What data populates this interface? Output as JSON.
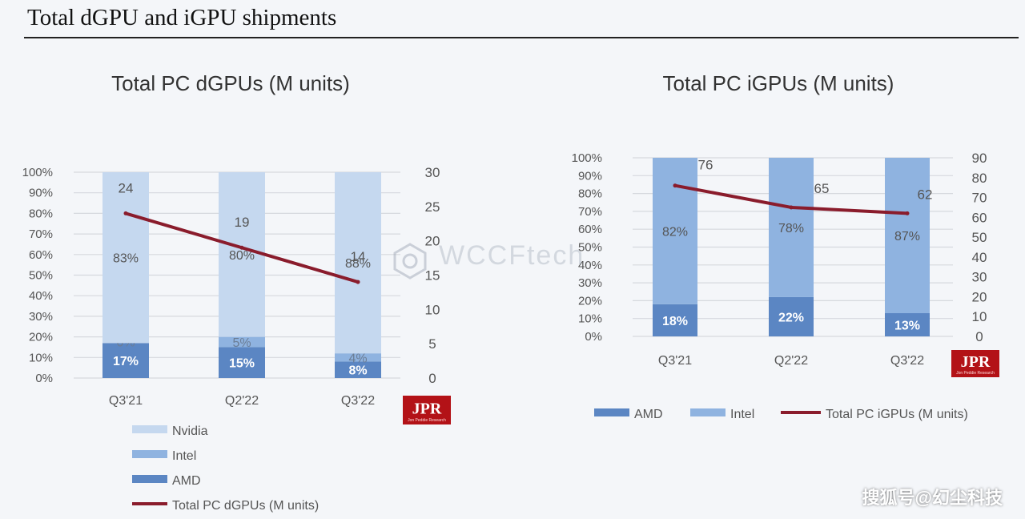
{
  "page": {
    "title": "Total dGPU and iGPU shipments",
    "watermark": "WCCFtech",
    "credit": "搜狐号@幻尘科技",
    "logo_text": "JPR",
    "logo_subtext": "Jon Peddie Research"
  },
  "colors": {
    "amd": "#5b86c3",
    "intel": "#8fb3e0",
    "nvidia": "#c5d8ef",
    "line": "#8a1c2c"
  },
  "chart_data": [
    {
      "type": "bar",
      "stacked": true,
      "title": "Total PC dGPUs (M units)",
      "categories": [
        "Q3'21",
        "Q2'22",
        "Q3'22"
      ],
      "y_left_ticks": [
        "0%",
        "10%",
        "20%",
        "30%",
        "40%",
        "50%",
        "60%",
        "70%",
        "80%",
        "90%",
        "100%"
      ],
      "y_right_ticks": [
        "0",
        "5",
        "10",
        "15",
        "20",
        "25",
        "30"
      ],
      "ylim_left": [
        0,
        100
      ],
      "ylim_right": [
        0,
        30
      ],
      "series": [
        {
          "name": "AMD",
          "values": [
            17,
            15,
            8
          ],
          "labels": [
            "17%",
            "15%",
            "8%"
          ]
        },
        {
          "name": "Intel",
          "values": [
            0,
            5,
            4
          ],
          "labels": [
            "0%",
            "5%",
            "4%"
          ]
        },
        {
          "name": "Nvidia",
          "values": [
            83,
            80,
            88
          ],
          "labels": [
            "83%",
            "80%",
            "88%"
          ]
        }
      ],
      "line": {
        "name": "Total PC dGPUs (M units)",
        "values": [
          24,
          19,
          14
        ],
        "labels": [
          "24",
          "19",
          "14"
        ]
      },
      "legend": [
        "Nvidia",
        "Intel",
        "AMD",
        "Total PC dGPUs (M units)"
      ],
      "legend_position": "bottom",
      "grid": true
    },
    {
      "type": "bar",
      "stacked": true,
      "title": "Total PC iGPUs (M units)",
      "categories": [
        "Q3'21",
        "Q2'22",
        "Q3'22"
      ],
      "y_left_ticks": [
        "0%",
        "10%",
        "20%",
        "30%",
        "40%",
        "50%",
        "60%",
        "70%",
        "80%",
        "90%",
        "100%"
      ],
      "y_right_ticks": [
        "0",
        "10",
        "20",
        "30",
        "40",
        "50",
        "60",
        "70",
        "80",
        "90"
      ],
      "ylim_left": [
        0,
        100
      ],
      "ylim_right": [
        0,
        90
      ],
      "series": [
        {
          "name": "AMD",
          "values": [
            18,
            22,
            13
          ],
          "labels": [
            "18%",
            "22%",
            "13%"
          ]
        },
        {
          "name": "Intel",
          "values": [
            82,
            78,
            87
          ],
          "labels": [
            "82%",
            "78%",
            "87%"
          ]
        }
      ],
      "line": {
        "name": "Total PC iGPUs (M units)",
        "values": [
          76,
          65,
          62
        ],
        "labels": [
          "76",
          "65",
          "62"
        ]
      },
      "legend": [
        "AMD",
        "Intel",
        "Total PC iGPUs (M units)"
      ],
      "legend_position": "bottom",
      "grid": true
    }
  ]
}
